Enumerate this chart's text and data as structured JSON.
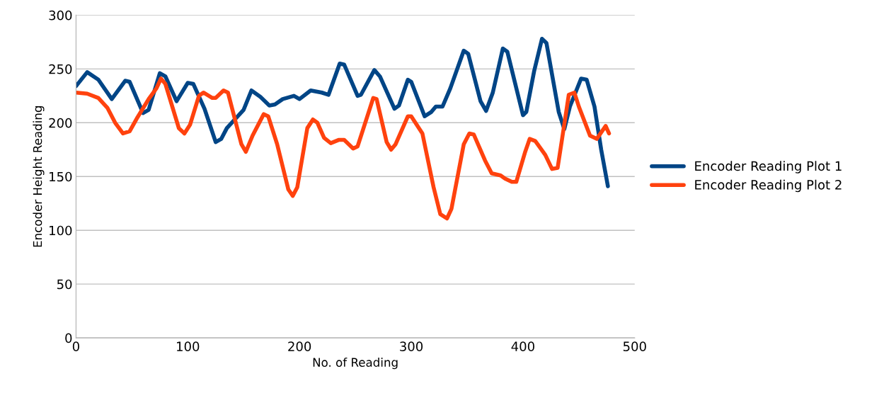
{
  "chart_data": {
    "type": "line",
    "xlabel": "No. of Reading",
    "ylabel": "Encoder Height Reading",
    "xlim": [
      0,
      500
    ],
    "xticks": [
      0,
      100,
      200,
      300,
      400,
      500
    ],
    "ylim": [
      0,
      300
    ],
    "yticks": [
      0,
      50,
      100,
      150,
      200,
      250,
      300
    ],
    "grid": "y",
    "legend": "right",
    "marker": "none",
    "line_style": "solid",
    "series": [
      {
        "name": "Encoder Reading Plot 1",
        "color": "#004586",
        "x": [
          0,
          10,
          20,
          32,
          44,
          48,
          60,
          65,
          75,
          80,
          90,
          100,
          105,
          115,
          125,
          130,
          135,
          150,
          157,
          165,
          173,
          178,
          185,
          195,
          200,
          210,
          220,
          226,
          236,
          240,
          252,
          255,
          267,
          272,
          285,
          289,
          297,
          300,
          312,
          318,
          322,
          328,
          335,
          347,
          351,
          362,
          367,
          373,
          382,
          386,
          400,
          403,
          410,
          417,
          421,
          432,
          437,
          442,
          452,
          457,
          464,
          470,
          476
        ],
        "values": [
          234,
          247,
          240,
          222,
          239,
          238,
          209,
          212,
          246,
          243,
          220,
          237,
          236,
          213,
          182,
          185,
          195,
          212,
          230,
          224,
          216,
          217,
          222,
          225,
          222,
          230,
          228,
          226,
          255,
          254,
          225,
          226,
          249,
          243,
          213,
          216,
          240,
          238,
          206,
          210,
          215,
          215,
          232,
          267,
          264,
          220,
          211,
          228,
          269,
          266,
          207,
          210,
          248,
          278,
          274,
          210,
          194,
          215,
          241,
          240,
          215,
          175,
          141
        ]
      },
      {
        "name": "Encoder Reading Plot 2",
        "color": "#ff420e",
        "x": [
          0,
          10,
          20,
          28,
          35,
          42,
          48,
          55,
          65,
          72,
          76,
          80,
          92,
          97,
          102,
          110,
          114,
          122,
          125,
          132,
          136,
          148,
          152,
          158,
          168,
          172,
          180,
          190,
          194,
          198,
          207,
          212,
          216,
          222,
          228,
          235,
          240,
          248,
          252,
          266,
          269,
          278,
          282,
          286,
          297,
          300,
          310,
          320,
          326,
          332,
          336,
          347,
          352,
          356,
          366,
          372,
          380,
          384,
          390,
          394,
          402,
          406,
          411,
          420,
          426,
          431,
          435,
          441,
          446,
          450,
          460,
          466,
          474,
          477
        ],
        "values": [
          228,
          227,
          223,
          214,
          200,
          190,
          192,
          205,
          222,
          232,
          241,
          236,
          195,
          190,
          198,
          225,
          228,
          223,
          223,
          230,
          228,
          180,
          173,
          188,
          208,
          206,
          180,
          138,
          132,
          140,
          195,
          203,
          200,
          186,
          181,
          184,
          184,
          176,
          178,
          223,
          222,
          182,
          175,
          180,
          206,
          206,
          190,
          140,
          115,
          111,
          120,
          180,
          190,
          189,
          165,
          153,
          151,
          148,
          145,
          145,
          173,
          185,
          183,
          170,
          157,
          158,
          185,
          226,
          228,
          215,
          188,
          185,
          197,
          190
        ]
      }
    ]
  }
}
